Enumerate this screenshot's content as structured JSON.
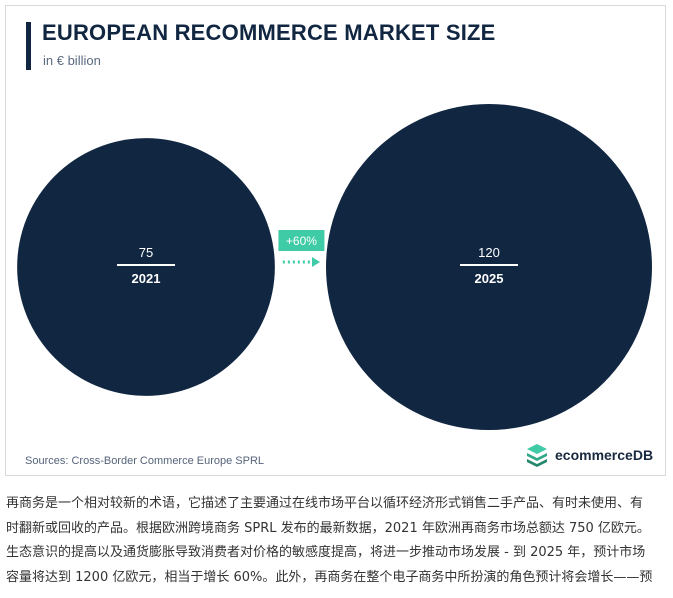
{
  "chart_data": {
    "type": "bubble",
    "title": "EUROPEAN RECOMMERCE MARKET SIZE",
    "subtitle": "in € billion",
    "points": [
      {
        "category": "2021",
        "value": 75,
        "value_label": "75"
      },
      {
        "category": "2025",
        "value": 120,
        "value_label": "120"
      }
    ],
    "growth_label": "+60%",
    "source": "Sources: Cross-Border Commerce Europe SPRL",
    "colors": {
      "bubble": "#112641",
      "growth": "#3fcba6",
      "text_on_bubble": "#ffffff"
    }
  },
  "brand": {
    "name": "ecommerceDB",
    "icon": "stack-logo-icon"
  },
  "article": {
    "lines": [
      "再商务是一个相对较新的术语，它描述了主要通过在线市场平台以循环经济形式销售二手产品、有时未使用、有",
      "时翻新或回收的产品。根据欧洲跨境商务 SPRL 发布的最新数据，2021 年欧洲再商务市场总额达 750 亿欧元。",
      "生态意识的提高以及通货膨胀导致消费者对价格的敏感度提高，将进一步推动市场发展 - 到 2025 年，预计市场",
      "容量将达到 1200 亿欧元，相当于增长 60%。此外，再商务在整个电子商务中所扮演的角色预计将会增长——预"
    ]
  }
}
